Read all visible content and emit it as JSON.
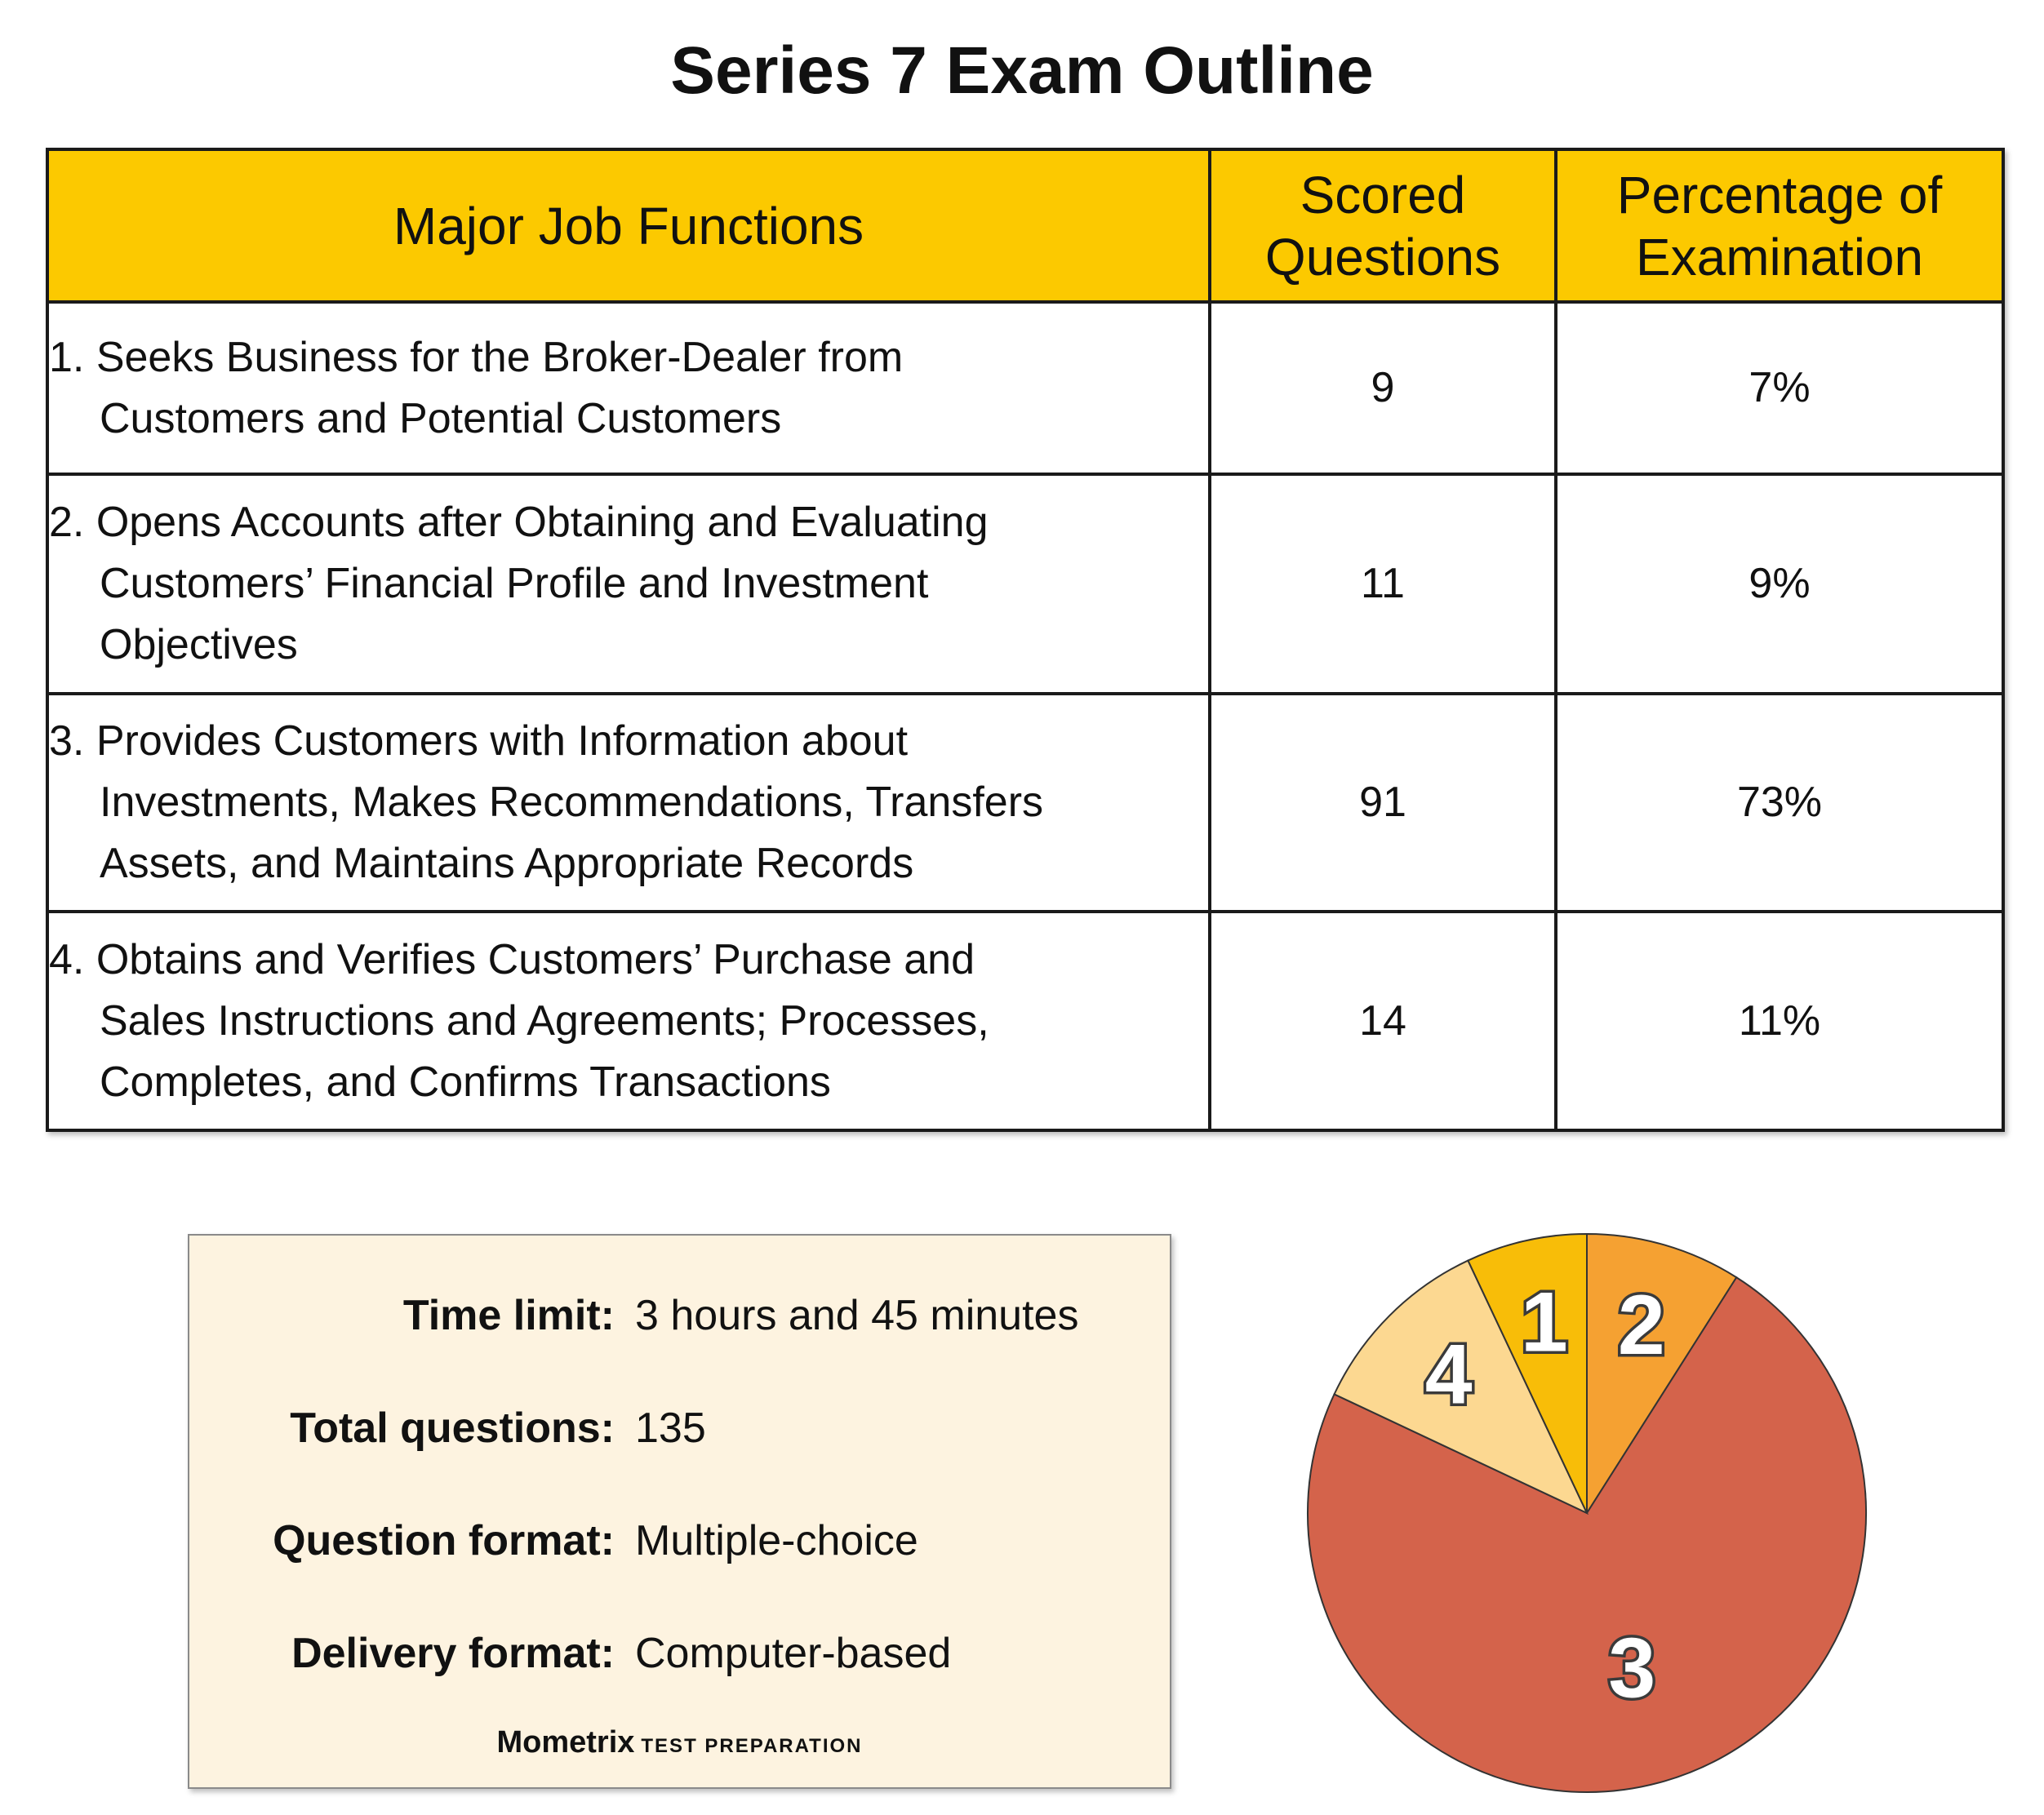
{
  "title": "Series 7 Exam Outline",
  "table": {
    "headers": [
      "Major Job Functions",
      "Scored Questions",
      "Percentage of Examination"
    ],
    "rows": [
      [
        [
          "1. Seeks Business for the Broker-Dealer from",
          "Customers and Potential Customers"
        ],
        "9",
        "7%"
      ],
      [
        [
          "2. Opens Accounts after Obtaining and Evaluating",
          "Customers’ Financial Profile and Investment",
          "Objectives"
        ],
        "11",
        "9%"
      ],
      [
        [
          "3. Provides Customers with Information about",
          "Investments, Makes Recommendations, Transfers",
          "Assets, and Maintains Appropriate Records"
        ],
        "91",
        "73%"
      ],
      [
        [
          "4. Obtains and Verifies Customers’ Purchase and",
          "Sales Instructions and Agreements; Processes,",
          "Completes, and Confirms Transactions"
        ],
        "14",
        "11%"
      ]
    ]
  },
  "info": {
    "items": [
      {
        "label": "Time limit:",
        "value": "3 hours and 45 minutes"
      },
      {
        "label": "Total questions:",
        "value": "135"
      },
      {
        "label": "Question format:",
        "value": "Multiple-choice"
      },
      {
        "label": "Delivery format:",
        "value": "Computer-based"
      }
    ],
    "brand": "Mometrix",
    "tagline": "TEST PREPARATION"
  },
  "chart_data": {
    "type": "pie",
    "categories": [
      "2",
      "3",
      "4",
      "1"
    ],
    "values": [
      9,
      73,
      11,
      7
    ],
    "colors": [
      "#f5a132",
      "#d4634b",
      "#fcd891",
      "#f8bd08"
    ]
  }
}
